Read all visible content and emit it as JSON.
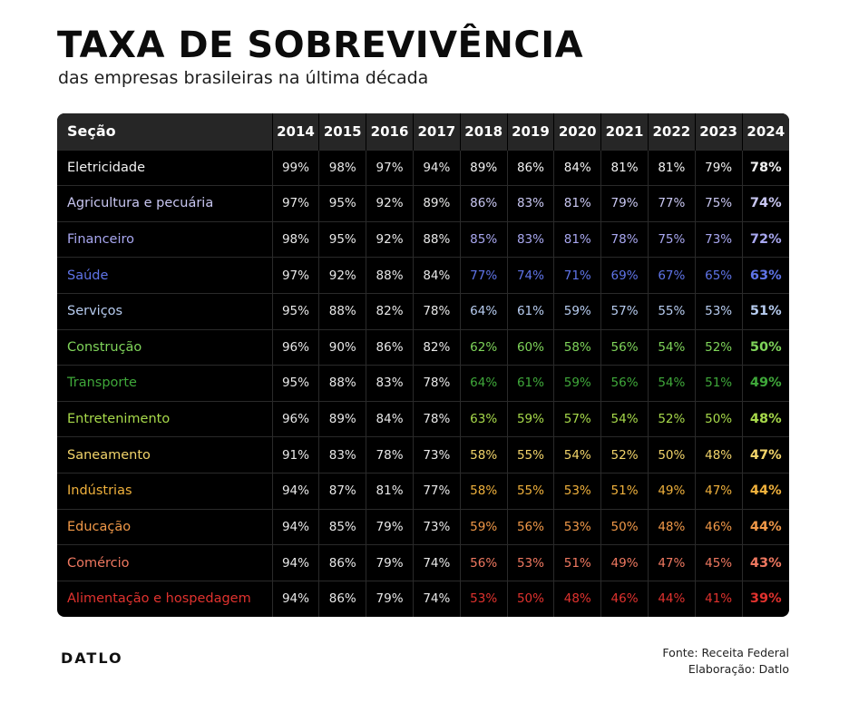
{
  "title": "TAXA DE SOBREVIVÊNCIA",
  "subtitle": "das empresas brasileiras na última década",
  "footer": {
    "logo": "DATLO",
    "source": "Fonte: Receita Federal",
    "credit": "Elaboração: Datlo"
  },
  "chart_data": {
    "type": "table",
    "title": "TAXA DE SOBREVIVÊNCIA",
    "subtitle": "das empresas brasileiras na última década",
    "row_header": "Seção",
    "columns": [
      "2014",
      "2015",
      "2016",
      "2017",
      "2018",
      "2019",
      "2020",
      "2021",
      "2022",
      "2023",
      "2024"
    ],
    "rows": [
      {
        "name": "Eletricidade",
        "color": "#f2f2f2",
        "values": [
          "99%",
          "98%",
          "97%",
          "94%",
          "89%",
          "86%",
          "84%",
          "81%",
          "81%",
          "79%",
          "78%"
        ]
      },
      {
        "name": "Agricultura e pecuária",
        "color": "#c9c7f2",
        "values": [
          "97%",
          "95%",
          "92%",
          "89%",
          "86%",
          "83%",
          "81%",
          "79%",
          "77%",
          "75%",
          "74%"
        ]
      },
      {
        "name": "Financeiro",
        "color": "#a8a7f0",
        "values": [
          "98%",
          "95%",
          "92%",
          "88%",
          "85%",
          "83%",
          "81%",
          "78%",
          "75%",
          "73%",
          "72%"
        ]
      },
      {
        "name": "Saúde",
        "color": "#5f74e8",
        "values": [
          "97%",
          "92%",
          "88%",
          "84%",
          "77%",
          "74%",
          "71%",
          "69%",
          "67%",
          "65%",
          "63%"
        ]
      },
      {
        "name": "Serviços",
        "color": "#b7ccf0",
        "values": [
          "95%",
          "88%",
          "82%",
          "78%",
          "64%",
          "61%",
          "59%",
          "57%",
          "55%",
          "53%",
          "51%"
        ]
      },
      {
        "name": "Construção",
        "color": "#7fd45a",
        "values": [
          "96%",
          "90%",
          "86%",
          "82%",
          "62%",
          "60%",
          "58%",
          "56%",
          "54%",
          "52%",
          "50%"
        ]
      },
      {
        "name": "Transporte",
        "color": "#3fa83a",
        "values": [
          "95%",
          "88%",
          "83%",
          "78%",
          "64%",
          "61%",
          "59%",
          "56%",
          "54%",
          "51%",
          "49%"
        ]
      },
      {
        "name": "Entretenimento",
        "color": "#a7d94a",
        "values": [
          "96%",
          "89%",
          "84%",
          "78%",
          "63%",
          "59%",
          "57%",
          "54%",
          "52%",
          "50%",
          "48%"
        ]
      },
      {
        "name": "Saneamento",
        "color": "#f2d46a",
        "values": [
          "91%",
          "83%",
          "78%",
          "73%",
          "58%",
          "55%",
          "54%",
          "52%",
          "50%",
          "48%",
          "47%"
        ]
      },
      {
        "name": "Indústrias",
        "color": "#f0b13c",
        "values": [
          "94%",
          "87%",
          "81%",
          "77%",
          "58%",
          "55%",
          "53%",
          "51%",
          "49%",
          "47%",
          "44%"
        ]
      },
      {
        "name": "Educação",
        "color": "#f09848",
        "values": [
          "94%",
          "85%",
          "79%",
          "73%",
          "59%",
          "56%",
          "53%",
          "50%",
          "48%",
          "46%",
          "44%"
        ]
      },
      {
        "name": "Comércio",
        "color": "#ef7860",
        "values": [
          "94%",
          "86%",
          "79%",
          "74%",
          "56%",
          "53%",
          "51%",
          "49%",
          "47%",
          "45%",
          "43%"
        ]
      },
      {
        "name": "Alimentação e hospedagem",
        "color": "#e0322e",
        "values": [
          "94%",
          "86%",
          "79%",
          "74%",
          "53%",
          "50%",
          "48%",
          "46%",
          "44%",
          "41%",
          "39%"
        ]
      }
    ]
  }
}
